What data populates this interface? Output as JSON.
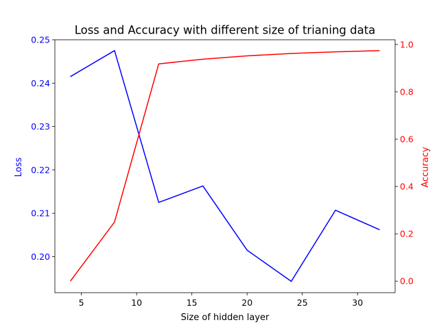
{
  "chart_data": {
    "type": "line",
    "title": "Loss and Accuracy with different size of trianing data",
    "xlabel": "Size of hidden layer",
    "x": [
      4,
      8,
      12,
      16,
      20,
      24,
      28,
      32
    ],
    "xlim": [
      2.6,
      33.4
    ],
    "xticks": [
      5,
      10,
      15,
      20,
      25,
      30
    ],
    "grid": false,
    "axes": {
      "left": {
        "label": "Loss",
        "color": "#0000ff",
        "ylim": [
          0.1917,
          0.25
        ],
        "ticks": [
          "0.20",
          "0.21",
          "0.22",
          "0.23",
          "0.24",
          "0.25"
        ]
      },
      "right": {
        "label": "Accuracy",
        "color": "#ff0000",
        "ylim": [
          -0.0486,
          1.02
        ],
        "ticks": [
          "0.0",
          "0.2",
          "0.4",
          "0.6",
          "0.8",
          "1.0"
        ]
      }
    },
    "series": [
      {
        "axis": "left",
        "color": "#0000ff",
        "values": [
          0.2415,
          0.2475,
          0.2125,
          0.2163,
          0.2015,
          0.1943,
          0.2107,
          0.2062
        ]
      },
      {
        "axis": "right",
        "color": "#ff0000",
        "values": [
          0.0,
          0.25,
          0.918,
          0.938,
          0.952,
          0.962,
          0.969,
          0.974
        ]
      }
    ]
  }
}
